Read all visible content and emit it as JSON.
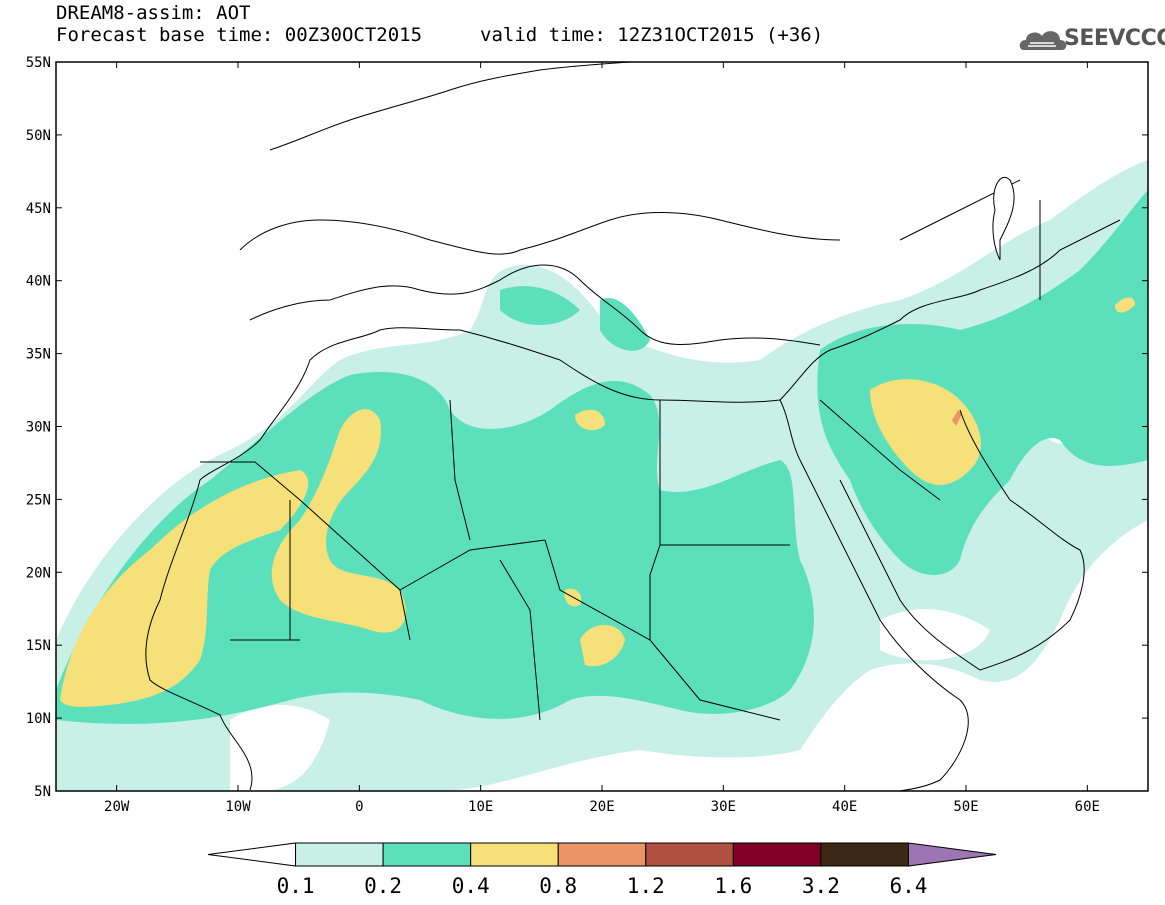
{
  "header": {
    "title": "DREAM8-assim: AOT",
    "base_time": "Forecast base time: 00Z30OCT2015",
    "valid_time": "valid time: 12Z31OCT2015 (+36)"
  },
  "logo": {
    "text": "SEEVCCC",
    "icon": "cloud-icon"
  },
  "map": {
    "lon_range": [
      -25,
      65
    ],
    "lat_range": [
      5,
      55
    ],
    "lat_ticks": [
      "55N",
      "50N",
      "45N",
      "40N",
      "35N",
      "30N",
      "25N",
      "20N",
      "15N",
      "10N",
      "5N"
    ],
    "lon_ticks": [
      "20W",
      "10W",
      "0",
      "10E",
      "20E",
      "30E",
      "40E",
      "50E",
      "60E"
    ]
  },
  "colorbar": {
    "labels": [
      "0.1",
      "0.2",
      "0.4",
      "0.8",
      "1.2",
      "1.6",
      "3.2",
      "6.4"
    ],
    "colors": [
      "#c9f0e6",
      "#5ce0bc",
      "#f5e07a",
      "#eb9466",
      "#b05040",
      "#800028",
      "#3d2818",
      "#9c75b3"
    ]
  }
}
